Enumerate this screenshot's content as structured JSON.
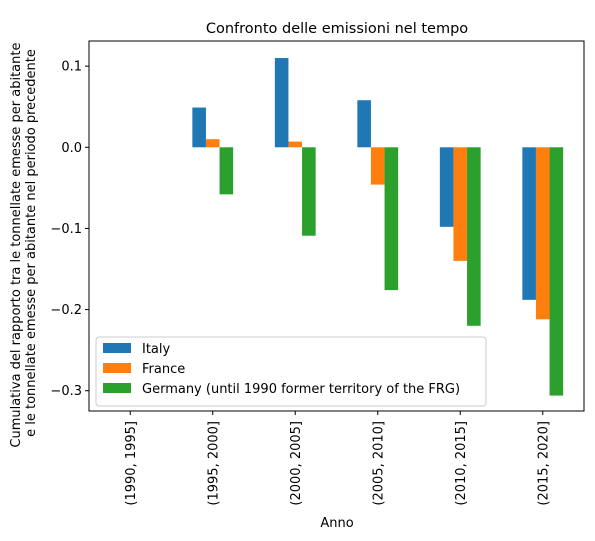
{
  "chart_data": {
    "type": "bar",
    "title": "Confronto delle emissioni nel tempo",
    "xlabel": "Anno",
    "ylabel_lines": [
      "Cumulativa del rapporto tra le tonnellate emesse per abitante",
      "e le tonnellate emesse per abitante nel periodo precedente"
    ],
    "categories": [
      "(1990, 1995]",
      "(1995, 2000]",
      "(2000, 2005]",
      "(2005, 2010]",
      "(2010, 2015]",
      "(2015, 2020]"
    ],
    "series": [
      {
        "name": "Italy",
        "color": "#1f77b4",
        "values": [
          0,
          0.049,
          0.11,
          0.058,
          -0.098,
          -0.188
        ]
      },
      {
        "name": "France",
        "color": "#ff7f0e",
        "values": [
          0,
          0.01,
          0.007,
          -0.046,
          -0.14,
          -0.212
        ]
      },
      {
        "name": "Germany (until 1990 former territory of the FRG)",
        "color": "#2ca02c",
        "values": [
          0,
          -0.058,
          -0.109,
          -0.176,
          -0.22,
          -0.306
        ]
      }
    ],
    "yticks": [
      0.1,
      0.0,
      -0.1,
      -0.2,
      -0.3
    ],
    "ytick_labels": [
      "0.1",
      "0.0",
      "−0.1",
      "−0.2",
      "−0.3"
    ],
    "ylim": [
      -0.325,
      0.131
    ],
    "grid": false,
    "legend_position": "lower-left"
  }
}
